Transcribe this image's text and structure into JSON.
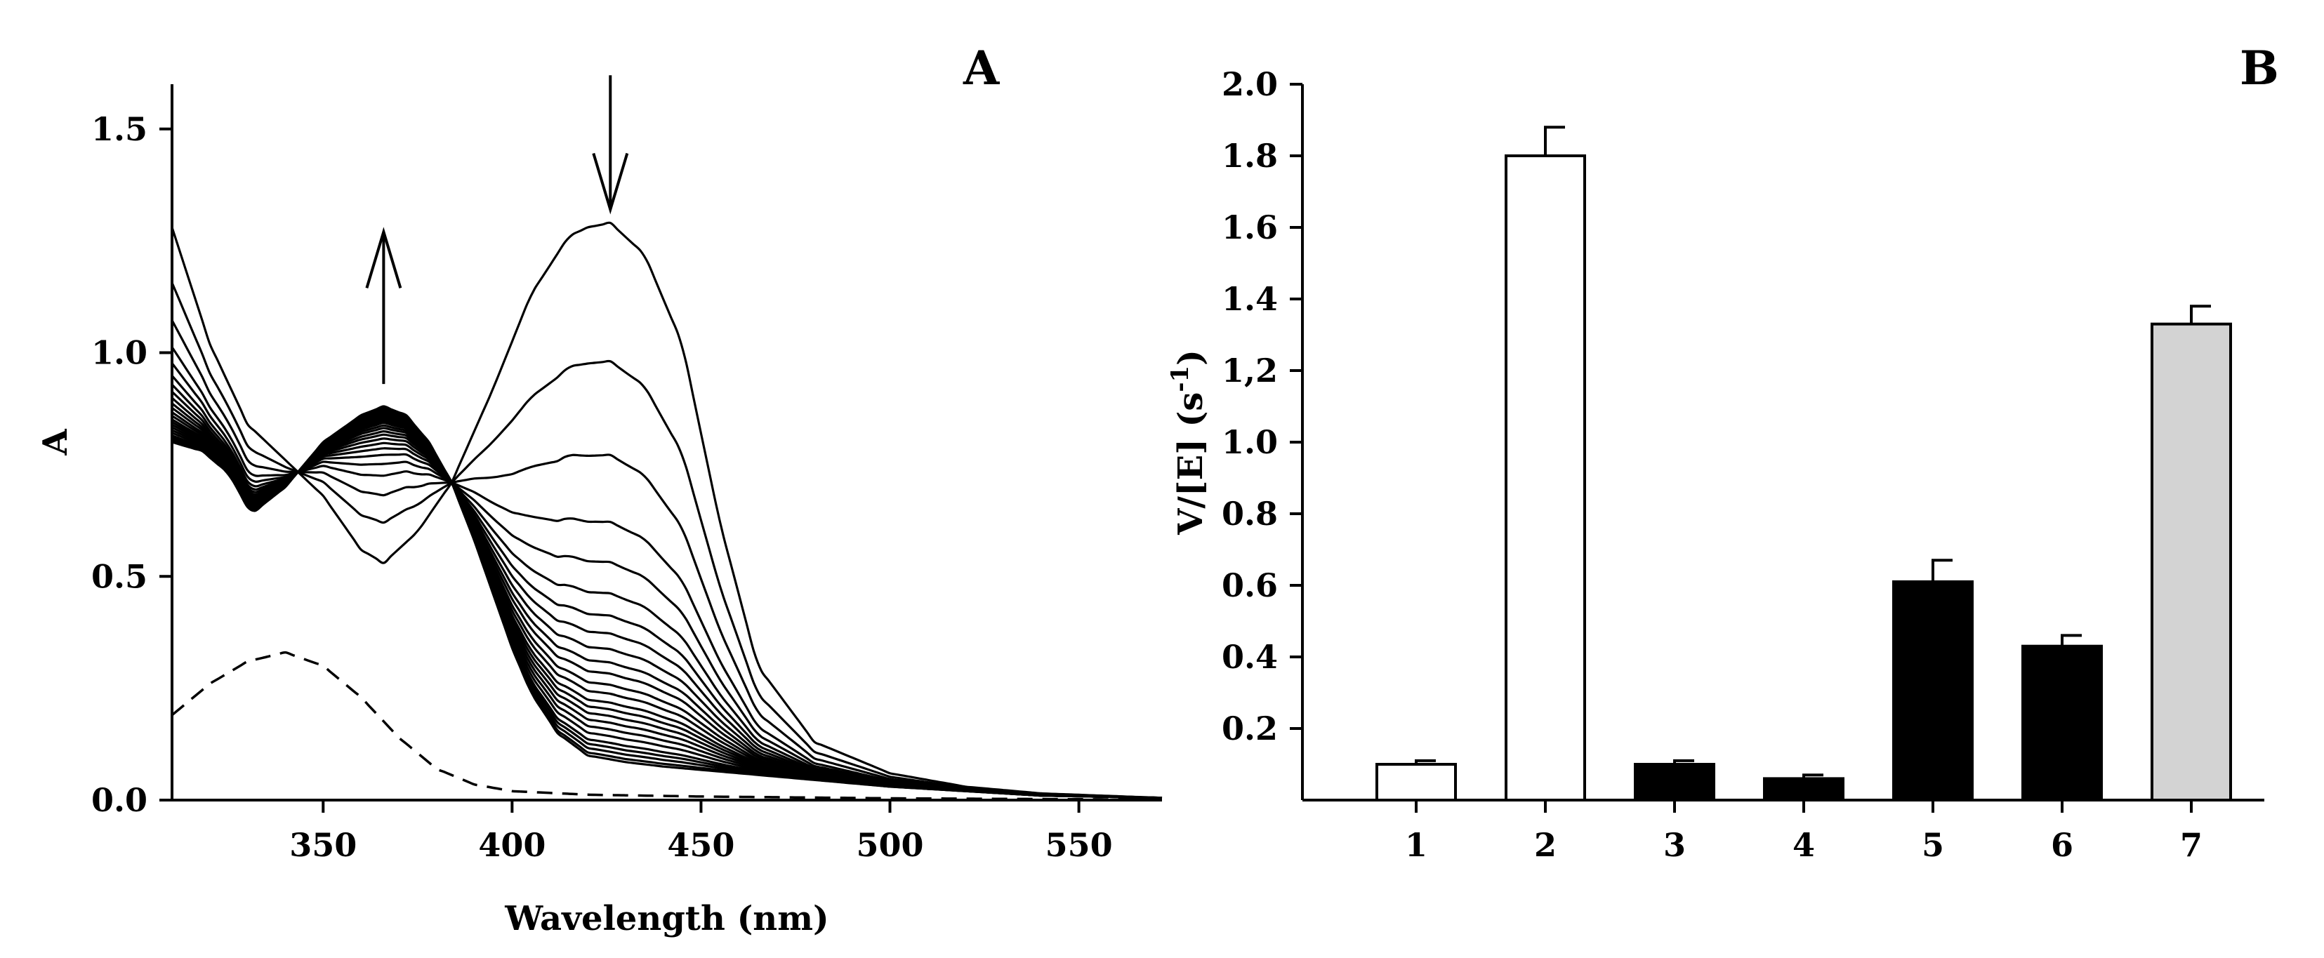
{
  "chart_data": [
    {
      "panel": "A",
      "type": "line",
      "title": "A",
      "xlabel": "Wavelength (nm)",
      "ylabel": "A",
      "xlim": [
        310,
        572
      ],
      "ylim": [
        0,
        1.6
      ],
      "xticks": [
        350,
        400,
        450,
        500,
        550
      ],
      "xtick_labels": [
        "350",
        "400",
        "450",
        "500",
        "550"
      ],
      "yticks": [
        0,
        0.5,
        1.0,
        1.5
      ],
      "ytick_labels": [
        "0.0",
        "0.5",
        "1.0",
        "1.5"
      ],
      "grid": false,
      "isosbestic_point": {
        "x": 384,
        "y": 0.71
      },
      "peak_maxima_decreasing": [
        1.29,
        0.98,
        0.77,
        0.62,
        0.53,
        0.46,
        0.41,
        0.37,
        0.335,
        0.305,
        0.28,
        0.255,
        0.235,
        0.215,
        0.2,
        0.185,
        0.17,
        0.155,
        0.14,
        0.125,
        0.115,
        0.105,
        0.095,
        0.088
      ],
      "series": [
        {
          "name": "first spectrum",
          "style": "solid",
          "x": [
            310,
            320,
            330,
            340,
            350,
            360,
            366,
            375,
            384,
            395,
            405,
            415,
            420,
            426,
            435,
            445,
            455,
            465,
            480,
            500,
            520,
            540,
            572
          ],
          "y": [
            1.28,
            1.02,
            0.84,
            0.76,
            0.68,
            0.56,
            0.53,
            0.6,
            0.71,
            0.92,
            1.13,
            1.26,
            1.28,
            1.29,
            1.22,
            1.02,
            0.62,
            0.3,
            0.13,
            0.06,
            0.03,
            0.015,
            0.005
          ]
        },
        {
          "name": "final spectrum",
          "style": "solid",
          "x": [
            310,
            318,
            325,
            331,
            340,
            350,
            360,
            366,
            372,
            378,
            384,
            390,
            395,
            400,
            405,
            412,
            420,
            430,
            440,
            460,
            480,
            500,
            520,
            540,
            572
          ],
          "y": [
            0.8,
            0.78,
            0.73,
            0.64,
            0.7,
            0.8,
            0.86,
            0.88,
            0.86,
            0.8,
            0.71,
            0.58,
            0.46,
            0.34,
            0.24,
            0.15,
            0.1,
            0.085,
            0.075,
            0.06,
            0.045,
            0.03,
            0.02,
            0.01,
            0.005
          ]
        },
        {
          "name": "dashed reference spectrum",
          "style": "dashed",
          "x": [
            310,
            320,
            330,
            340,
            350,
            360,
            370,
            380,
            390,
            400,
            420,
            450,
            500,
            572
          ],
          "y": [
            0.19,
            0.26,
            0.31,
            0.33,
            0.3,
            0.23,
            0.14,
            0.07,
            0.035,
            0.02,
            0.012,
            0.008,
            0.004,
            0.001
          ]
        }
      ],
      "annotations": [
        {
          "text": "arrow down",
          "x": 426,
          "y_from": 1.62,
          "y_to": 1.32
        },
        {
          "text": "arrow up",
          "x": 366,
          "y_from": 0.93,
          "y_to": 1.27
        }
      ]
    },
    {
      "panel": "B",
      "type": "bar",
      "title": "B",
      "xlabel": "",
      "ylabel": "V/[E] (s",
      "ylabel_superscript": "-1",
      "ylabel_close": ")",
      "ylim": [
        0,
        2.0
      ],
      "yticks": [
        0.2,
        0.4,
        0.6,
        0.8,
        1.0,
        1.2,
        1.4,
        1.6,
        1.8,
        2.0
      ],
      "ytick_labels": [
        "0.2",
        "0.4",
        "0.6",
        "0.8",
        "1.0",
        "1,2",
        "1.4",
        "1.6",
        "1.8",
        "2.0"
      ],
      "grid": false,
      "categories": [
        "1",
        "2",
        "3",
        "4",
        "5",
        "6",
        "7"
      ],
      "values": [
        0.1,
        1.8,
        0.1,
        0.06,
        0.61,
        0.43,
        1.33
      ],
      "errors": [
        0.01,
        0.08,
        0.01,
        0.01,
        0.06,
        0.03,
        0.05
      ],
      "colors": [
        "#ffffff",
        "#ffffff",
        "#000000",
        "#000000",
        "#000000",
        "#000000",
        "#d3d3d3"
      ]
    }
  ]
}
